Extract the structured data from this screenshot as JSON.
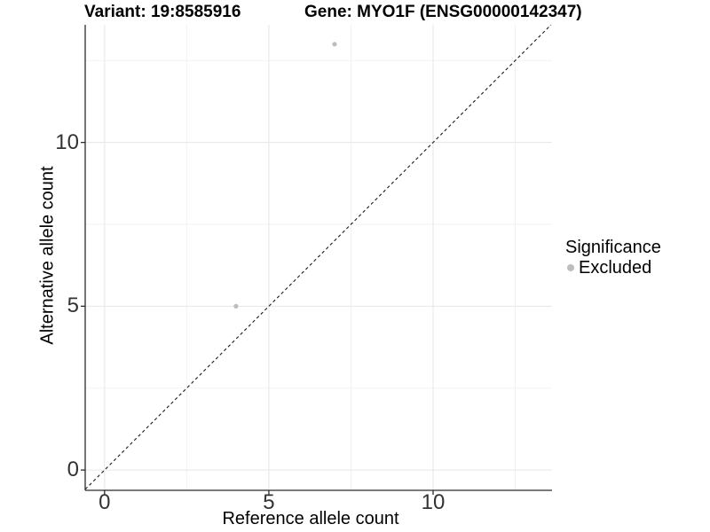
{
  "colors": {
    "background": "#ffffff",
    "grid_major": "#e6e6e6",
    "grid_minor": "#f2f2f2",
    "axis_line": "#2b2b2b",
    "tick_text": "#333333",
    "title_text": "#000000",
    "identity_line": "#1a1a1a",
    "point": "#bdbdbd"
  },
  "chart_data": {
    "type": "scatter",
    "titles": {
      "left": "Variant: 19:8585916",
      "right": "Gene: MYO1F (ENSG00000142347)"
    },
    "xlabel": "Reference allele count",
    "ylabel": "Alternative allele count",
    "xlim": [
      -0.59,
      13.62
    ],
    "ylim": [
      -0.62,
      13.59
    ],
    "x_major_ticks": [
      0,
      5,
      10
    ],
    "y_major_ticks": [
      0,
      5,
      10
    ],
    "x_minor_ticks": [
      2.5,
      7.5,
      12.5
    ],
    "y_minor_ticks": [
      2.5,
      7.5,
      12.5
    ],
    "grid": "major and minor gridlines on white panel",
    "identity_line": {
      "equation": "y = x",
      "style": "dashed",
      "color": "#1a1a1a"
    },
    "series": [
      {
        "name": "Excluded",
        "color": "#bdbdbd",
        "points": [
          {
            "x": 4,
            "y": 5
          },
          {
            "x": 7,
            "y": 13
          }
        ]
      }
    ],
    "legend": {
      "title": "Significance",
      "position": "right",
      "entries": [
        {
          "label": "Excluded",
          "color": "#bdbdbd"
        }
      ]
    }
  }
}
